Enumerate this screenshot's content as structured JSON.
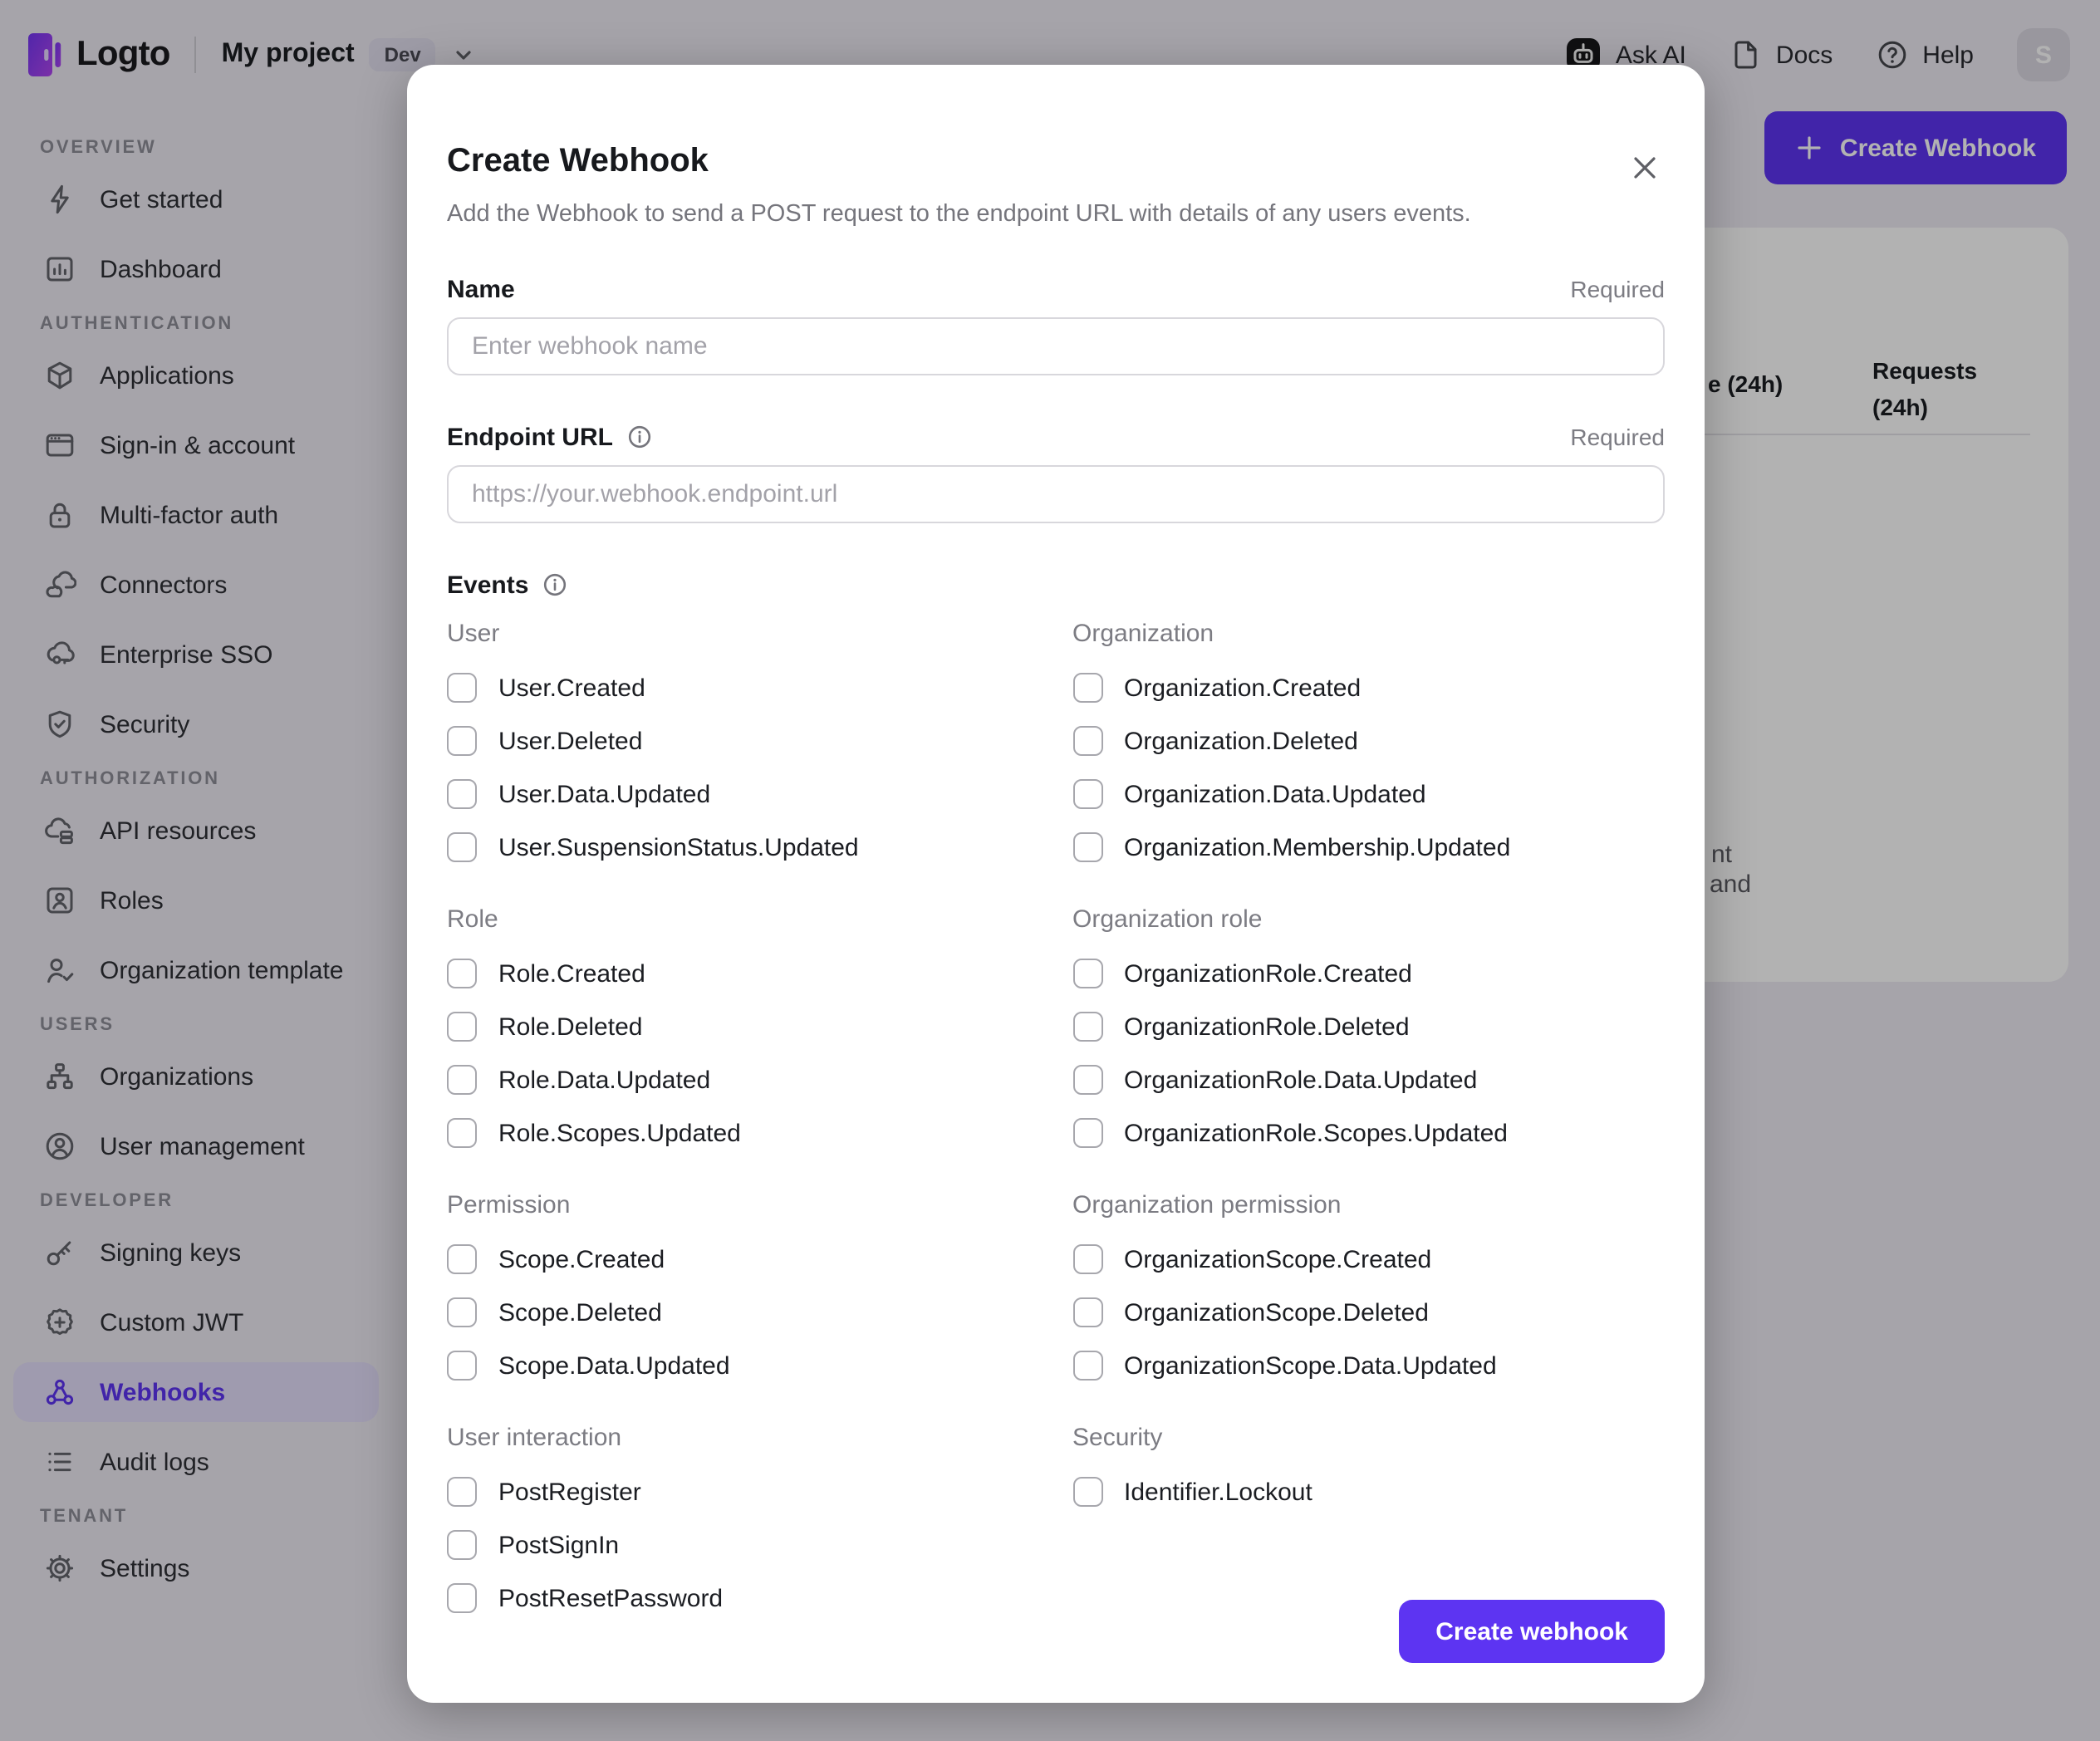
{
  "colors": {
    "primary": "#5d34f2",
    "page_bg": "#eeebf4",
    "selected_pill_bg": "#e4defb"
  },
  "topbar": {
    "logo_text": "Logto",
    "project_name": "My project",
    "env_badge": "Dev",
    "ask_ai_label": "Ask AI",
    "docs_label": "Docs",
    "help_label": "Help",
    "avatar_initial": "S"
  },
  "sidebar": {
    "sections": [
      {
        "label": "OVERVIEW",
        "items": [
          {
            "label": "Get started",
            "icon": "lightning"
          },
          {
            "label": "Dashboard",
            "icon": "bar-chart"
          }
        ]
      },
      {
        "label": "AUTHENTICATION",
        "items": [
          {
            "label": "Applications",
            "icon": "cube"
          },
          {
            "label": "Sign-in & account",
            "icon": "browser-window"
          },
          {
            "label": "Multi-factor auth",
            "icon": "lock"
          },
          {
            "label": "Connectors",
            "icon": "clouds"
          },
          {
            "label": "Enterprise SSO",
            "icon": "cloud-key"
          },
          {
            "label": "Security",
            "icon": "shield-check"
          }
        ]
      },
      {
        "label": "AUTHORIZATION",
        "items": [
          {
            "label": "API resources",
            "icon": "cloud-stack"
          },
          {
            "label": "Roles",
            "icon": "id-card"
          },
          {
            "label": "Organization template",
            "icon": "person-check"
          }
        ]
      },
      {
        "label": "USERS",
        "items": [
          {
            "label": "Organizations",
            "icon": "org-chart"
          },
          {
            "label": "User management",
            "icon": "person-circle"
          }
        ]
      },
      {
        "label": "DEVELOPER",
        "items": [
          {
            "label": "Signing keys",
            "icon": "key"
          },
          {
            "label": "Custom JWT",
            "icon": "jwt-badge"
          },
          {
            "label": "Webhooks",
            "icon": "webhook",
            "active": true
          },
          {
            "label": "Audit logs",
            "icon": "list"
          }
        ]
      },
      {
        "label": "TENANT",
        "items": [
          {
            "label": "Settings",
            "icon": "gear"
          }
        ]
      }
    ]
  },
  "background": {
    "create_webhook_button": "Create Webhook",
    "table_header_col1_fragment": "e (24h)",
    "table_header_col2": "Requests (24h)",
    "empty_state_fragment_1": "nt",
    "empty_state_fragment_2": "and"
  },
  "modal": {
    "title": "Create Webhook",
    "subtitle": "Add the Webhook to send a POST request to the endpoint URL with details of any users events.",
    "name_label": "Name",
    "name_required": "Required",
    "name_placeholder": "Enter webhook name",
    "endpoint_label": "Endpoint URL",
    "endpoint_required": "Required",
    "endpoint_placeholder": "https://your.webhook.endpoint.url",
    "events_label": "Events",
    "events": {
      "groups": [
        {
          "left": {
            "title": "User",
            "items": [
              "User.Created",
              "User.Deleted",
              "User.Data.Updated",
              "User.SuspensionStatus.Updated"
            ]
          },
          "right": {
            "title": "Organization",
            "items": [
              "Organization.Created",
              "Organization.Deleted",
              "Organization.Data.Updated",
              "Organization.Membership.Updated"
            ]
          }
        },
        {
          "left": {
            "title": "Role",
            "items": [
              "Role.Created",
              "Role.Deleted",
              "Role.Data.Updated",
              "Role.Scopes.Updated"
            ]
          },
          "right": {
            "title": "Organization role",
            "items": [
              "OrganizationRole.Created",
              "OrganizationRole.Deleted",
              "OrganizationRole.Data.Updated",
              "OrganizationRole.Scopes.Updated"
            ]
          }
        },
        {
          "left": {
            "title": "Permission",
            "items": [
              "Scope.Created",
              "Scope.Deleted",
              "Scope.Data.Updated"
            ]
          },
          "right": {
            "title": "Organization permission",
            "items": [
              "OrganizationScope.Created",
              "OrganizationScope.Deleted",
              "OrganizationScope.Data.Updated"
            ]
          }
        },
        {
          "left": {
            "title": "User interaction",
            "items": [
              "PostRegister",
              "PostSignIn",
              "PostResetPassword"
            ]
          },
          "right": {
            "title": "Security",
            "items": [
              "Identifier.Lockout"
            ]
          }
        }
      ]
    },
    "submit_label": "Create webhook"
  }
}
